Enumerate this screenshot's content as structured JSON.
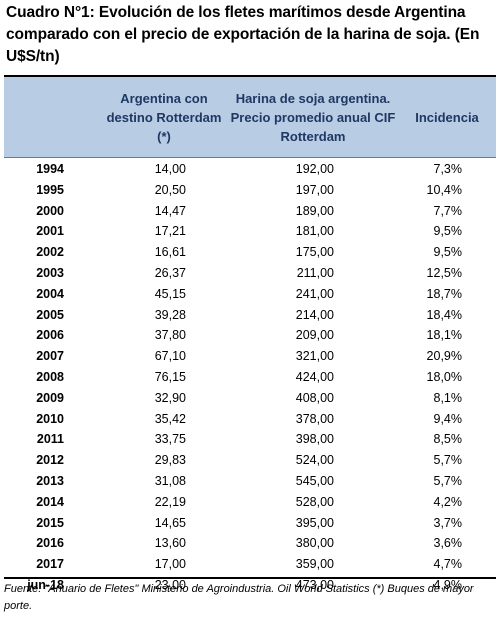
{
  "title": "Cuadro N°1: Evolución de los fletes marítimos desde Argentina comparado con el precio de exportación de la harina de soja. (En U$S/tn)",
  "columns": {
    "argentina": "Argentina con destino Rotterdam (*)",
    "harina": "Harina de soja argentina. Precio promedio anual CIF Rotterdam",
    "incidencia": "Incidencia"
  },
  "rows": [
    {
      "year": "1994",
      "argentina": "14,00",
      "harina": "192,00",
      "incidencia": "7,3%"
    },
    {
      "year": "1995",
      "argentina": "20,50",
      "harina": "197,00",
      "incidencia": "10,4%"
    },
    {
      "year": "2000",
      "argentina": "14,47",
      "harina": "189,00",
      "incidencia": "7,7%"
    },
    {
      "year": "2001",
      "argentina": "17,21",
      "harina": "181,00",
      "incidencia": "9,5%"
    },
    {
      "year": "2002",
      "argentina": "16,61",
      "harina": "175,00",
      "incidencia": "9,5%"
    },
    {
      "year": "2003",
      "argentina": "26,37",
      "harina": "211,00",
      "incidencia": "12,5%"
    },
    {
      "year": "2004",
      "argentina": "45,15",
      "harina": "241,00",
      "incidencia": "18,7%"
    },
    {
      "year": "2005",
      "argentina": "39,28",
      "harina": "214,00",
      "incidencia": "18,4%"
    },
    {
      "year": "2006",
      "argentina": "37,80",
      "harina": "209,00",
      "incidencia": "18,1%"
    },
    {
      "year": "2007",
      "argentina": "67,10",
      "harina": "321,00",
      "incidencia": "20,9%"
    },
    {
      "year": "2008",
      "argentina": "76,15",
      "harina": "424,00",
      "incidencia": "18,0%"
    },
    {
      "year": "2009",
      "argentina": "32,90",
      "harina": "408,00",
      "incidencia": "8,1%"
    },
    {
      "year": "2010",
      "argentina": "35,42",
      "harina": "378,00",
      "incidencia": "9,4%"
    },
    {
      "year": "2011",
      "argentina": "33,75",
      "harina": "398,00",
      "incidencia": "8,5%"
    },
    {
      "year": "2012",
      "argentina": "29,83",
      "harina": "524,00",
      "incidencia": "5,7%"
    },
    {
      "year": "2013",
      "argentina": "31,08",
      "harina": "545,00",
      "incidencia": "5,7%"
    },
    {
      "year": "2014",
      "argentina": "22,19",
      "harina": "528,00",
      "incidencia": "4,2%"
    },
    {
      "year": "2015",
      "argentina": "14,65",
      "harina": "395,00",
      "incidencia": "3,7%"
    },
    {
      "year": "2016",
      "argentina": "13,60",
      "harina": "380,00",
      "incidencia": "3,6%"
    },
    {
      "year": "2017",
      "argentina": "17,00",
      "harina": "359,00",
      "incidencia": "4,7%"
    },
    {
      "year": "jun-18",
      "argentina": "23,00",
      "harina": "473,00",
      "incidencia": "4,9%"
    }
  ],
  "source": "Fuente: \"Anuario de Fletes\" Ministerio de Agroindustria. Oil World Statistics (*) Buques de mayor porte.",
  "colors": {
    "header_bg": "#b8cce4",
    "header_text": "#1f3864"
  }
}
